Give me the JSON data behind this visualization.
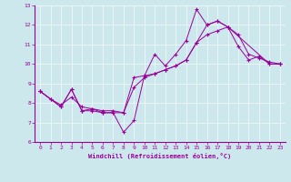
{
  "xlabel": "Windchill (Refroidissement éolien,°C)",
  "bg_color": "#cce8ec",
  "line_color": "#990099",
  "grid_color": "#b0d8dc",
  "xlim": [
    -0.5,
    23.5
  ],
  "ylim": [
    6,
    13
  ],
  "xticks": [
    0,
    1,
    2,
    3,
    4,
    5,
    6,
    7,
    8,
    9,
    10,
    11,
    12,
    13,
    14,
    15,
    16,
    17,
    18,
    19,
    20,
    21,
    22,
    23
  ],
  "yticks": [
    6,
    7,
    8,
    9,
    10,
    11,
    12,
    13
  ],
  "series": [
    {
      "x": [
        0,
        1,
        2,
        3,
        4,
        5,
        6,
        7,
        8,
        9,
        10,
        11,
        12,
        13,
        14,
        15,
        16,
        17,
        18,
        19,
        20,
        21,
        22,
        23
      ],
      "y": [
        8.6,
        8.2,
        7.8,
        8.7,
        7.6,
        7.6,
        7.5,
        7.5,
        6.5,
        7.1,
        9.4,
        10.5,
        9.9,
        10.5,
        11.2,
        12.8,
        12.0,
        12.2,
        11.9,
        10.9,
        10.2,
        10.4,
        10.0,
        10.0
      ]
    },
    {
      "x": [
        0,
        1,
        2,
        3,
        4,
        5,
        6,
        7,
        8,
        9,
        10,
        11,
        12,
        13,
        14,
        15,
        16,
        17,
        18,
        19,
        20,
        21,
        22,
        23
      ],
      "y": [
        8.6,
        8.2,
        7.9,
        8.3,
        7.8,
        7.7,
        7.6,
        7.6,
        7.5,
        8.8,
        9.3,
        9.5,
        9.7,
        9.9,
        10.2,
        11.1,
        11.5,
        11.7,
        11.9,
        11.5,
        10.5,
        10.3,
        10.1,
        10.0
      ]
    },
    {
      "x": [
        0,
        2,
        3,
        4,
        5,
        6,
        8,
        9,
        10,
        11,
        12,
        13,
        14,
        15,
        16,
        17,
        18,
        22,
        23
      ],
      "y": [
        8.6,
        7.8,
        8.7,
        7.6,
        7.7,
        7.5,
        7.5,
        9.3,
        9.4,
        9.5,
        9.7,
        9.9,
        10.2,
        11.1,
        12.0,
        12.2,
        11.9,
        10.0,
        10.0
      ]
    }
  ]
}
